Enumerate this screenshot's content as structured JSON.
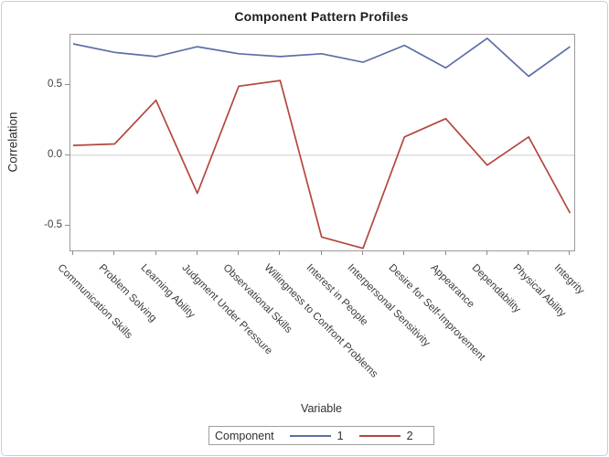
{
  "window": {
    "background": "#ffffff",
    "border_color": "#c9ccd3"
  },
  "chart_data": {
    "type": "line",
    "title": "Component Pattern Profiles",
    "xlabel": "Variable",
    "ylabel": "Correlation",
    "categories": [
      "Communication Skills",
      "Problem Solving",
      "Learning Ability",
      "Judgment Under Pressure",
      "Observational Skills",
      "Willingness to Confront Problems",
      "Interest in People",
      "Interpersonal Sensitivity",
      "Desire for Self-Improvement",
      "Appearance",
      "Dependability",
      "Physical Ability",
      "Integrity"
    ],
    "series": [
      {
        "name": "1",
        "color": "#5d6fa5",
        "values": [
          0.79,
          0.73,
          0.7,
          0.77,
          0.72,
          0.7,
          0.72,
          0.66,
          0.78,
          0.62,
          0.83,
          0.56,
          0.77
        ]
      },
      {
        "name": "2",
        "color": "#b3473f",
        "values": [
          0.07,
          0.08,
          0.39,
          -0.27,
          0.49,
          0.53,
          -0.58,
          -0.66,
          0.13,
          0.26,
          -0.07,
          0.13,
          -0.41
        ]
      }
    ],
    "ylim": [
      -0.675,
      0.855
    ],
    "yticks": [
      0.5,
      0.0,
      -0.5
    ],
    "ytick_labels": [
      "0.5",
      "0.0",
      "-0.5"
    ],
    "grid": "zero reference line only",
    "zero_line_color": "#cbcbcb",
    "axis_color": "#9b9b9b",
    "tick_color": "#8c8c8c",
    "legend_position": "bottom-center",
    "legend_title": "Component",
    "x_label_rotation_deg": 45
  }
}
